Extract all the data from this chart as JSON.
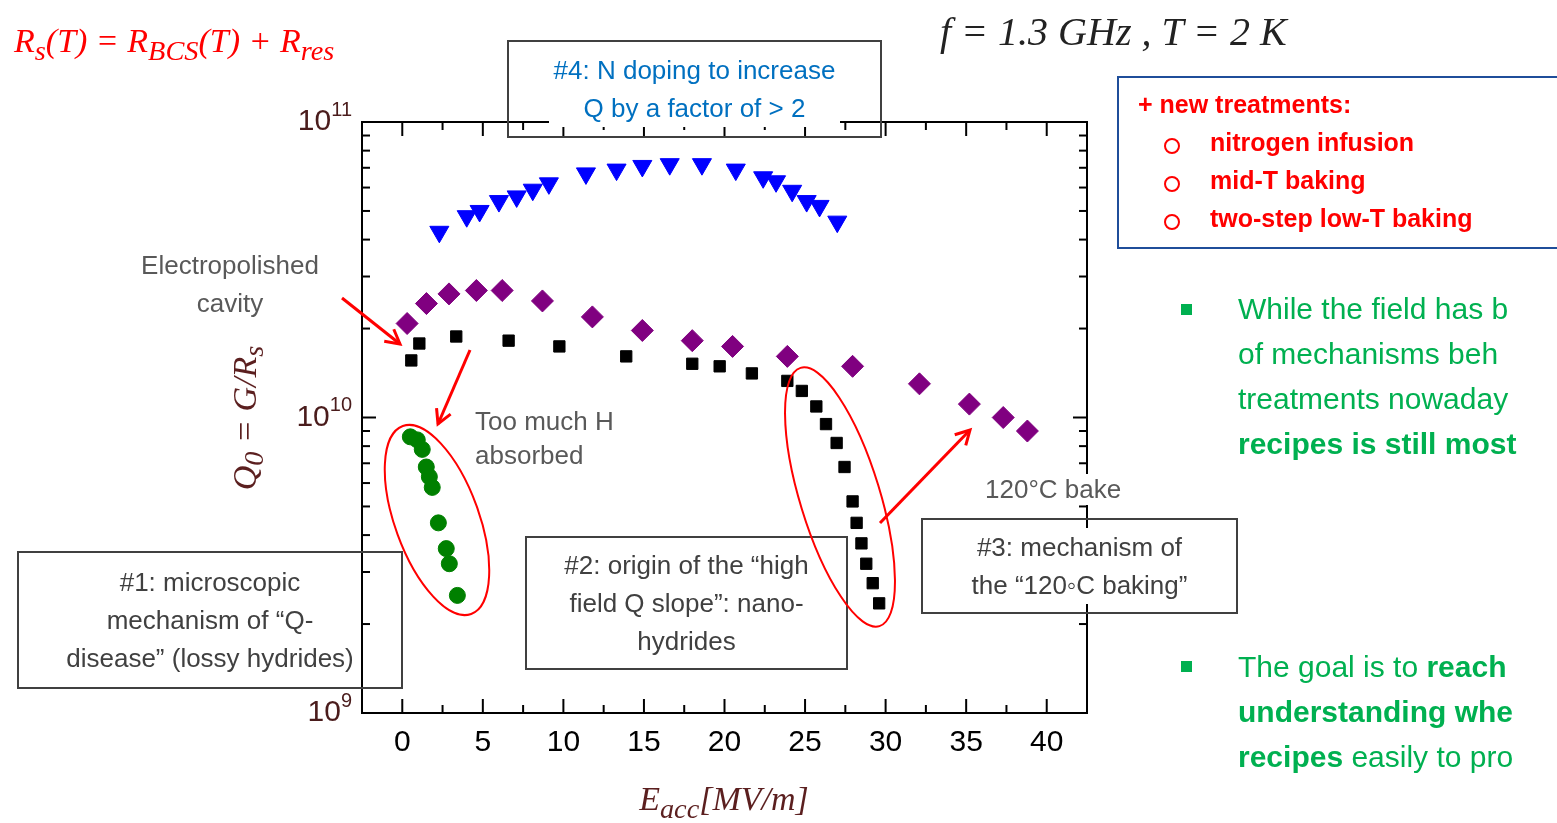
{
  "chart_data": {
    "type": "scatter",
    "xlabel": "E$_{acc}$[MV/m]",
    "ylabel": "Q$_{0}$ = G/R$_{s}$",
    "log": "y",
    "grid": false,
    "legend": false,
    "xlim": [
      -2.5,
      42.5
    ],
    "ylim": [
      1000000000.0,
      100000000000.0
    ],
    "xticks": [
      0,
      {
        "value": 2.5,
        "label": null
      },
      5,
      {
        "value": 7.5,
        "label": null
      },
      10,
      {
        "value": 12.5,
        "label": null
      },
      15,
      {
        "value": 17.5,
        "label": null
      },
      20,
      {
        "value": 22.5,
        "label": null
      },
      25,
      {
        "value": 27.5,
        "label": null
      },
      30,
      {
        "value": 32.5,
        "label": null
      },
      35,
      {
        "value": 37.5,
        "label": null
      },
      40
    ],
    "yticks": [
      {
        "value": 1000000000.0,
        "label": "10$^{9}$"
      },
      {
        "value": 2000000000.0,
        "label": null
      },
      {
        "value": 3000000000.0,
        "label": null
      },
      {
        "value": 4000000000.0,
        "label": null
      },
      {
        "value": 5000000000.0,
        "label": null
      },
      {
        "value": 6000000000.0,
        "label": null
      },
      {
        "value": 7000000000.0,
        "label": null
      },
      {
        "value": 8000000000.0,
        "label": null
      },
      {
        "value": 9000000000.0,
        "label": null
      },
      {
        "value": 10000000000.0,
        "label": "10$^{10}$"
      },
      {
        "value": 20000000000.0,
        "label": null
      },
      {
        "value": 30000000000.0,
        "label": null
      },
      {
        "value": 40000000000.0,
        "label": null
      },
      {
        "value": 50000000000.0,
        "label": null
      },
      {
        "value": 60000000000.0,
        "label": null
      },
      {
        "value": 70000000000.0,
        "label": null
      },
      {
        "value": 80000000000.0,
        "label": null
      },
      {
        "value": 90000000000.0,
        "label": null
      },
      {
        "value": 100000000000.0,
        "label": "10$^{11}$"
      }
    ],
    "series": [
      {
        "color": "#0000ff",
        "marker": "triangle",
        "x": [
          2.3,
          4.0,
          4.8,
          6.0,
          7.1,
          8.1,
          9.1,
          11.4,
          13.3,
          14.9,
          16.6,
          18.6,
          20.7,
          22.4,
          23.2,
          24.2,
          25.1,
          25.9,
          27.0
        ],
        "values": [
          42500000000.0,
          48000000000.0,
          50000000000.0,
          54000000000.0,
          56000000000.0,
          59000000000.0,
          62000000000.0,
          67000000000.0,
          69000000000.0,
          71000000000.0,
          72000000000.0,
          72000000000.0,
          69000000000.0,
          65000000000.0,
          63000000000.0,
          58500000000.0,
          54000000000.0,
          52000000000.0,
          46000000000.0
        ]
      },
      {
        "color": "#800080",
        "marker": "diamond",
        "x": [
          0.3,
          1.5,
          2.9,
          4.6,
          6.2,
          8.7,
          11.8,
          14.9,
          18.0,
          20.5,
          23.9,
          27.95,
          32.1,
          35.2,
          37.3,
          38.8
        ],
        "values": [
          20800000000.0,
          24300000000.0,
          26200000000.0,
          26900000000.0,
          26900000000.0,
          24800000000.0,
          21900000000.0,
          19700000000.0,
          18200000000.0,
          17400000000.0,
          16100000000.0,
          14900000000.0,
          13000000000.0,
          11100000000.0,
          10000000000.0,
          9000000000.0
        ]
      },
      {
        "color": "#000000",
        "marker": "square",
        "x": [
          0.56,
          1.06,
          3.35,
          6.6,
          9.75,
          13.9,
          18.0,
          19.7,
          21.7,
          23.9,
          24.8,
          25.7,
          26.3,
          26.96,
          27.45,
          27.95,
          28.2,
          28.5,
          28.8,
          29.2,
          29.6
        ],
        "values": [
          15600000000.0,
          17800000000.0,
          18800000000.0,
          18200000000.0,
          17400000000.0,
          16100000000.0,
          15200000000.0,
          14900000000.0,
          14100000000.0,
          13300000000.0,
          12300000000.0,
          10900000000.0,
          9500000000.0,
          8200000000.0,
          6800000000.0,
          5200000000.0,
          4400000000.0,
          3750000000.0,
          3200000000.0,
          2750000000.0,
          2350000000.0
        ]
      },
      {
        "color": "#008000",
        "marker": "circle",
        "x": [
          0.5,
          0.93,
          1.24,
          1.49,
          1.68,
          1.86,
          2.24,
          2.73,
          2.92,
          3.42
        ],
        "values": [
          8600000000.0,
          8400000000.0,
          7800000000.0,
          6800000000.0,
          6300000000.0,
          5800000000.0,
          4400000000.0,
          3600000000.0,
          3200000000.0,
          2500000000.0
        ]
      }
    ],
    "annotations": [
      "R$_{s}$(T) = R$_{BCS}$(T) + R$_{res}$",
      "f = 1.3 GHz , T = 2 K",
      "#4: N doping to increase Q by a factor of > 2",
      "+ new treatments:",
      "nitrogen infusion",
      "mid-T baking",
      "two-step low-T baking",
      "Electropolished cavity",
      "Too much H absorbed",
      "120°C bake",
      "#1: microscopic mechanism of “Q-disease” (lossy hydrides)",
      "#2: origin of the “high field Q slope”: nano-hydrides",
      "#3: mechanism of the “120◦C baking”",
      "While the field has b",
      "of mechanisms beh",
      "treatments nowaday",
      "recipes is still most",
      "The goal is to ",
      "reach",
      "understanding whe",
      "recipes",
      " easily to pro"
    ]
  }
}
